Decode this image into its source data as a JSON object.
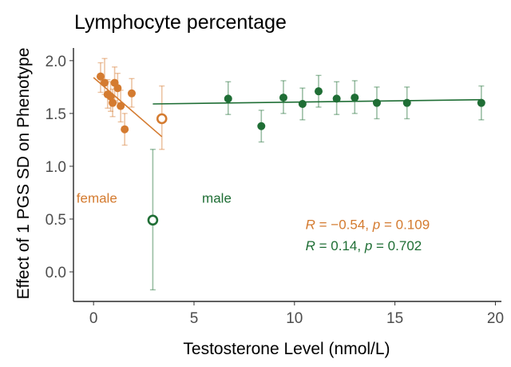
{
  "chart_data": {
    "type": "scatter",
    "title": "Lymphocyte percentage",
    "xlabel": "Testosterone Level (nmol/L)",
    "ylabel": "Effect of 1 PGS SD on Phenotype",
    "xlim": [
      -1.0,
      20.3
    ],
    "ylim": [
      -0.28,
      2.12
    ],
    "x_ticks": [
      0,
      5,
      10,
      15,
      20
    ],
    "x_tick_labels": [
      "0",
      "5",
      "10",
      "15",
      "20"
    ],
    "y_ticks": [
      0.0,
      0.5,
      1.0,
      1.5,
      2.0
    ],
    "y_tick_labels": [
      "0.0",
      "0.5",
      "1.0",
      "1.5",
      "2.0"
    ],
    "grid": false,
    "series": [
      {
        "name": "female",
        "color": "#D47B30",
        "points": [
          {
            "x": 0.35,
            "y": 1.85,
            "lo": 1.7,
            "hi": 1.98
          },
          {
            "x": 0.55,
            "y": 1.79,
            "lo": 1.68,
            "hi": 2.02
          },
          {
            "x": 0.7,
            "y": 1.68,
            "lo": 1.55,
            "hi": 1.82
          },
          {
            "x": 0.85,
            "y": 1.66,
            "lo": 1.52,
            "hi": 1.8
          },
          {
            "x": 0.95,
            "y": 1.6,
            "lo": 1.47,
            "hi": 1.73
          },
          {
            "x": 1.05,
            "y": 1.79,
            "lo": 1.62,
            "hi": 1.94
          },
          {
            "x": 1.2,
            "y": 1.74,
            "lo": 1.6,
            "hi": 1.88
          },
          {
            "x": 1.35,
            "y": 1.57,
            "lo": 1.42,
            "hi": 1.72
          },
          {
            "x": 1.55,
            "y": 1.35,
            "lo": 1.2,
            "hi": 1.5
          },
          {
            "x": 1.9,
            "y": 1.69,
            "lo": 1.56,
            "hi": 1.83
          },
          {
            "x": 3.4,
            "y": 1.45,
            "lo": 1.16,
            "hi": 1.76,
            "hollow": true
          }
        ],
        "trend": {
          "x": [
            0.0,
            3.4
          ],
          "y": [
            1.84,
            1.28
          ]
        }
      },
      {
        "name": "male",
        "color": "#1F6E35",
        "points": [
          {
            "x": 2.95,
            "y": 0.49,
            "lo": -0.17,
            "hi": 1.16,
            "hollow": true
          },
          {
            "x": 6.7,
            "y": 1.64,
            "lo": 1.49,
            "hi": 1.8
          },
          {
            "x": 8.35,
            "y": 1.38,
            "lo": 1.23,
            "hi": 1.53
          },
          {
            "x": 9.45,
            "y": 1.65,
            "lo": 1.5,
            "hi": 1.81
          },
          {
            "x": 10.4,
            "y": 1.59,
            "lo": 1.44,
            "hi": 1.74
          },
          {
            "x": 11.2,
            "y": 1.71,
            "lo": 1.56,
            "hi": 1.86
          },
          {
            "x": 12.1,
            "y": 1.64,
            "lo": 1.49,
            "hi": 1.8
          },
          {
            "x": 13.0,
            "y": 1.65,
            "lo": 1.5,
            "hi": 1.81
          },
          {
            "x": 14.1,
            "y": 1.6,
            "lo": 1.45,
            "hi": 1.75
          },
          {
            "x": 15.6,
            "y": 1.6,
            "lo": 1.45,
            "hi": 1.75
          },
          {
            "x": 19.3,
            "y": 1.6,
            "lo": 1.44,
            "hi": 1.76
          }
        ],
        "trend": {
          "x": [
            2.95,
            19.3
          ],
          "y": [
            1.59,
            1.63
          ]
        }
      }
    ],
    "annotations": [
      {
        "text": "female",
        "series": "female",
        "x": -0.85,
        "y": 0.7
      },
      {
        "text": "male",
        "series": "male",
        "x": 5.4,
        "y": 0.7
      }
    ],
    "stats": [
      {
        "series": "female",
        "r_symbol": "R",
        "r_eq": " = −0.54, ",
        "p_symbol": "p",
        "p_eq": " = 0.109",
        "x": 10.55,
        "y": 0.45
      },
      {
        "series": "male",
        "r_symbol": "R",
        "r_eq": " = 0.14, ",
        "p_symbol": "p",
        "p_eq": " = 0.702",
        "x": 10.55,
        "y": 0.25
      }
    ]
  }
}
